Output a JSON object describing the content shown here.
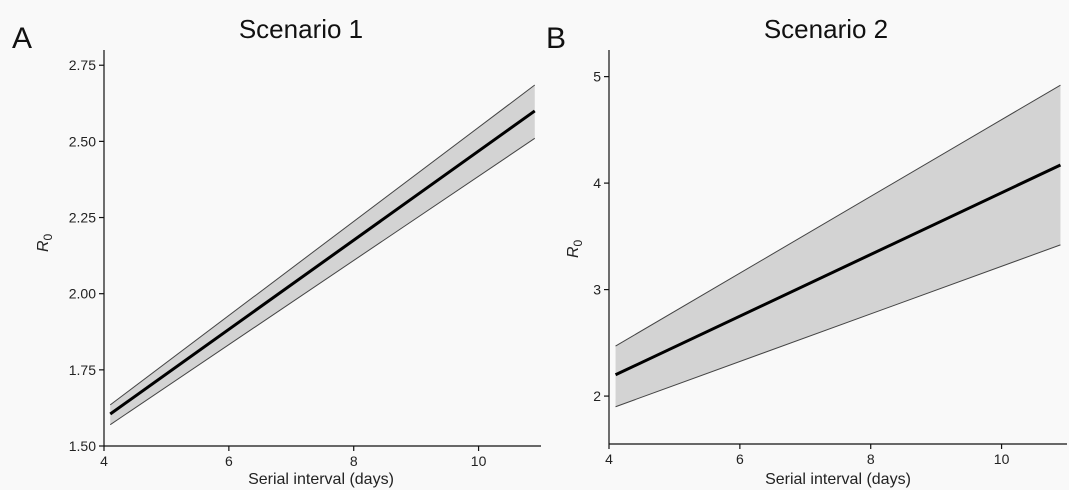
{
  "chart_data": [
    {
      "type": "line",
      "panel_letter": "A",
      "title": "Scenario 1",
      "xlabel": "Serial interval (days)",
      "ylabel": "R",
      "ylabel_subscript": "0",
      "xlim": [
        4,
        11
      ],
      "ylim": [
        1.5,
        2.8
      ],
      "xticks": [
        4,
        6,
        8,
        10
      ],
      "yticks": [
        1.5,
        1.75,
        2.0,
        2.25,
        2.5,
        2.75
      ],
      "ytick_labels": [
        "1.50",
        "1.75",
        "2.00",
        "2.25",
        "2.50",
        "2.75"
      ],
      "grid": false,
      "series": [
        {
          "x": [
            4.1,
            10.9
          ],
          "mean": [
            1.605,
            2.6
          ],
          "lower": [
            1.57,
            2.51
          ],
          "upper": [
            1.635,
            2.685
          ]
        }
      ]
    },
    {
      "type": "line",
      "panel_letter": "B",
      "title": "Scenario 2",
      "xlabel": "Serial interval (days)",
      "ylabel": "R",
      "ylabel_subscript": "0",
      "xlim": [
        4,
        11
      ],
      "ylim": [
        1.55,
        5.25
      ],
      "xticks": [
        4,
        6,
        8,
        10
      ],
      "yticks": [
        2,
        3,
        4,
        5
      ],
      "ytick_labels": [
        "2",
        "3",
        "4",
        "5"
      ],
      "grid": false,
      "series": [
        {
          "x": [
            4.1,
            10.9
          ],
          "mean": [
            2.2,
            4.17
          ],
          "lower": [
            1.9,
            3.42
          ],
          "upper": [
            2.47,
            4.92
          ]
        }
      ]
    }
  ]
}
